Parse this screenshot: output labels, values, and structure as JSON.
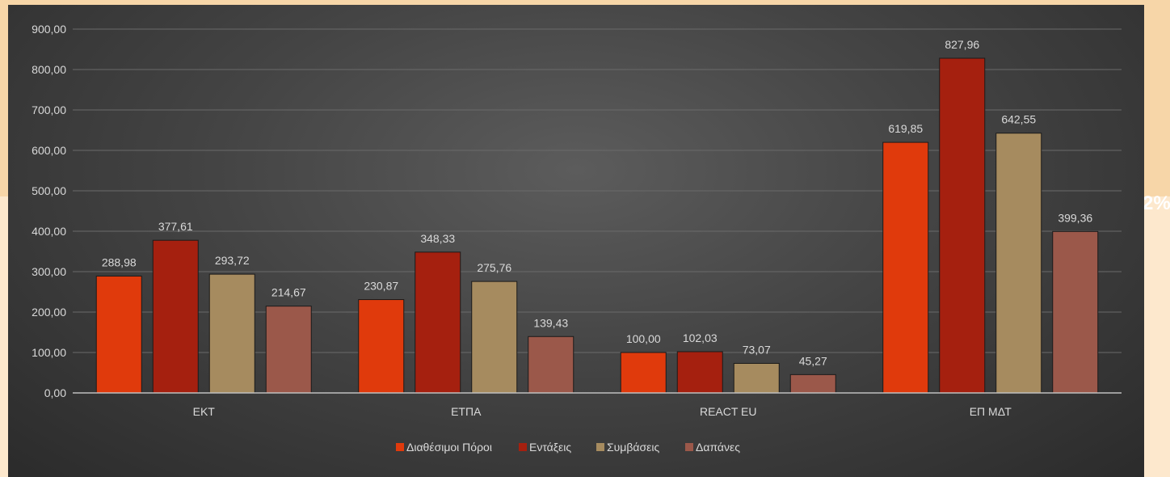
{
  "background_fragment": "2%",
  "chart_data": {
    "type": "bar",
    "categories": [
      "ΕΚΤ",
      "ΕΤΠΑ",
      "REACT EU",
      "ΕΠ ΜΔΤ"
    ],
    "series": [
      {
        "name": "Διαθέσιμοι Πόροι",
        "color": "#e03a0c",
        "values": [
          288.98,
          230.87,
          100.0,
          619.85
        ],
        "labels": [
          "288,98",
          "230,87",
          "100,00",
          "619,85"
        ]
      },
      {
        "name": "Εντάξεις",
        "color": "#a5200f",
        "values": [
          377.61,
          348.33,
          102.03,
          827.96
        ],
        "labels": [
          "377,61",
          "348,33",
          "102,03",
          "827,96"
        ]
      },
      {
        "name": "Συμβάσεις",
        "color": "#a68b5f",
        "values": [
          293.72,
          275.76,
          73.07,
          642.55
        ],
        "labels": [
          "293,72",
          "275,76",
          "73,07",
          "642,55"
        ]
      },
      {
        "name": "Δαπάνες",
        "color": "#9b584a",
        "values": [
          214.67,
          139.43,
          45.27,
          399.36
        ],
        "labels": [
          "214,67",
          "139,43",
          "45,27",
          "399,36"
        ]
      }
    ],
    "ylim": [
      0,
      900
    ],
    "yticks": [
      0,
      100,
      200,
      300,
      400,
      500,
      600,
      700,
      800,
      900
    ],
    "ytick_labels": [
      "0,00",
      "100,00",
      "200,00",
      "300,00",
      "400,00",
      "500,00",
      "600,00",
      "700,00",
      "800,00",
      "900,00"
    ],
    "grid": true,
    "legend_position": "bottom",
    "title": "",
    "xlabel": "",
    "ylabel": ""
  }
}
